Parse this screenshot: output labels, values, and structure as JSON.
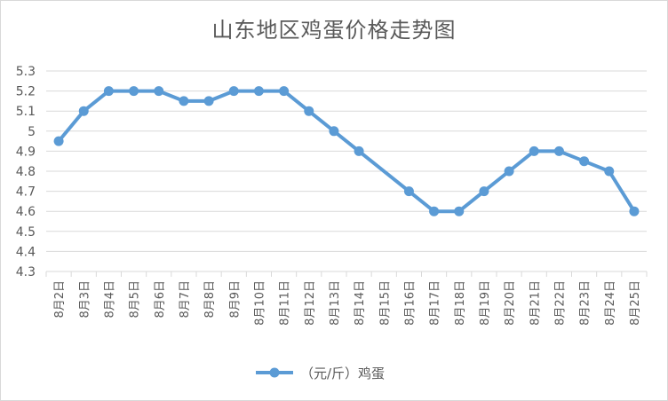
{
  "chart_data": {
    "type": "line",
    "title": "山东地区鸡蛋价格走势图",
    "xlabel": "",
    "ylabel": "",
    "categories": [
      "8月2日",
      "8月3日",
      "8月4日",
      "8月5日",
      "8月6日",
      "8月7日",
      "8月8日",
      "8月9日",
      "8月10日",
      "8月11日",
      "8月12日",
      "8月13日",
      "8月14日",
      "8月15日",
      "8月16日",
      "8月17日",
      "8月18日",
      "8月19日",
      "8月20日",
      "8月21日",
      "8月22日",
      "8月23日",
      "8月24日",
      "8月25日"
    ],
    "series": [
      {
        "name": "（元/斤）鸡蛋",
        "color": "#5b9bd5",
        "values": [
          4.95,
          5.1,
          5.2,
          5.2,
          5.2,
          5.15,
          5.15,
          5.2,
          5.2,
          5.2,
          5.1,
          5.0,
          4.9,
          null,
          4.7,
          4.6,
          4.6,
          4.7,
          4.8,
          4.9,
          4.9,
          4.85,
          4.8,
          4.6
        ]
      }
    ],
    "ylim": [
      4.3,
      5.3
    ],
    "yticks": [
      4.3,
      4.4,
      4.5,
      4.6,
      4.7,
      4.8,
      4.9,
      5.0,
      5.1,
      5.2,
      5.3
    ],
    "ytick_labels": [
      "4.3",
      "4.4",
      "4.5",
      "4.6",
      "4.7",
      "4.8",
      "4.9",
      "5",
      "5.1",
      "5.2",
      "5.3"
    ],
    "grid": true,
    "legend_position": "bottom",
    "gridline_color": "#d9d9d9"
  }
}
